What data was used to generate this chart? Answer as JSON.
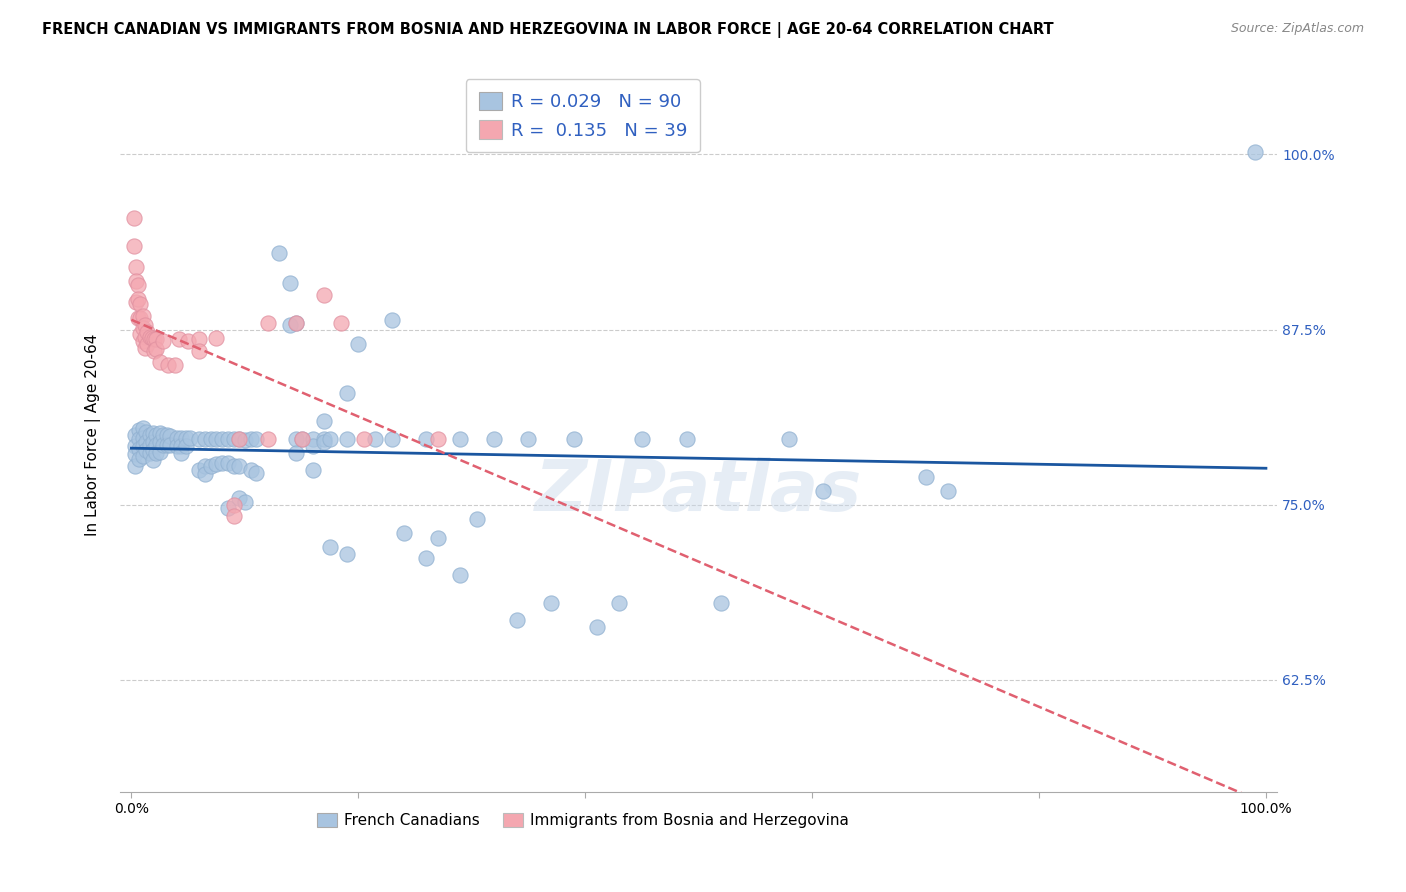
{
  "title": "FRENCH CANADIAN VS IMMIGRANTS FROM BOSNIA AND HERZEGOVINA IN LABOR FORCE | AGE 20-64 CORRELATION CHART",
  "source": "Source: ZipAtlas.com",
  "ylabel": "In Labor Force | Age 20-64",
  "y_ticks": [
    0.625,
    0.75,
    0.875,
    1.0
  ],
  "y_tick_labels": [
    "62.5%",
    "75.0%",
    "87.5%",
    "100.0%"
  ],
  "x_ticks": [
    0.0,
    0.2,
    0.4,
    0.6,
    0.8,
    1.0
  ],
  "x_tick_labels": [
    "0.0%",
    "",
    "",
    "",
    "",
    "100.0%"
  ],
  "r_blue": 0.029,
  "n_blue": 90,
  "r_pink": 0.135,
  "n_pink": 39,
  "legend_label_blue": "French Canadians",
  "legend_label_pink": "Immigrants from Bosnia and Herzegovina",
  "blue_color": "#a8c4e0",
  "pink_color": "#f4a7b0",
  "blue_line_color": "#1a56a0",
  "pink_line_color": "#e06070",
  "legend_text_color": "#3060c0",
  "watermark": "ZIPatlas",
  "ylim_low": 0.545,
  "ylim_high": 1.055,
  "xlim_low": -0.01,
  "xlim_high": 1.01,
  "blue_points": [
    [
      0.003,
      0.8
    ],
    [
      0.003,
      0.792
    ],
    [
      0.003,
      0.786
    ],
    [
      0.003,
      0.778
    ],
    [
      0.007,
      0.803
    ],
    [
      0.007,
      0.797
    ],
    [
      0.007,
      0.79
    ],
    [
      0.007,
      0.783
    ],
    [
      0.01,
      0.805
    ],
    [
      0.01,
      0.798
    ],
    [
      0.01,
      0.792
    ],
    [
      0.01,
      0.785
    ],
    [
      0.013,
      0.802
    ],
    [
      0.013,
      0.795
    ],
    [
      0.013,
      0.789
    ],
    [
      0.016,
      0.8
    ],
    [
      0.016,
      0.793
    ],
    [
      0.016,
      0.787
    ],
    [
      0.019,
      0.801
    ],
    [
      0.019,
      0.795
    ],
    [
      0.019,
      0.789
    ],
    [
      0.019,
      0.782
    ],
    [
      0.022,
      0.8
    ],
    [
      0.022,
      0.793
    ],
    [
      0.022,
      0.787
    ],
    [
      0.025,
      0.801
    ],
    [
      0.025,
      0.795
    ],
    [
      0.025,
      0.788
    ],
    [
      0.028,
      0.8
    ],
    [
      0.028,
      0.793
    ],
    [
      0.031,
      0.8
    ],
    [
      0.031,
      0.793
    ],
    [
      0.034,
      0.799
    ],
    [
      0.034,
      0.793
    ],
    [
      0.04,
      0.798
    ],
    [
      0.04,
      0.792
    ],
    [
      0.044,
      0.798
    ],
    [
      0.044,
      0.792
    ],
    [
      0.044,
      0.787
    ],
    [
      0.048,
      0.798
    ],
    [
      0.048,
      0.792
    ],
    [
      0.052,
      0.798
    ],
    [
      0.06,
      0.797
    ],
    [
      0.06,
      0.775
    ],
    [
      0.065,
      0.797
    ],
    [
      0.065,
      0.778
    ],
    [
      0.065,
      0.772
    ],
    [
      0.07,
      0.797
    ],
    [
      0.07,
      0.778
    ],
    [
      0.075,
      0.797
    ],
    [
      0.075,
      0.779
    ],
    [
      0.08,
      0.797
    ],
    [
      0.08,
      0.78
    ],
    [
      0.085,
      0.797
    ],
    [
      0.085,
      0.78
    ],
    [
      0.085,
      0.748
    ],
    [
      0.09,
      0.797
    ],
    [
      0.09,
      0.778
    ],
    [
      0.095,
      0.797
    ],
    [
      0.095,
      0.778
    ],
    [
      0.095,
      0.755
    ],
    [
      0.1,
      0.796
    ],
    [
      0.1,
      0.752
    ],
    [
      0.105,
      0.797
    ],
    [
      0.105,
      0.775
    ],
    [
      0.11,
      0.797
    ],
    [
      0.11,
      0.773
    ],
    [
      0.13,
      0.93
    ],
    [
      0.14,
      0.908
    ],
    [
      0.14,
      0.878
    ],
    [
      0.145,
      0.88
    ],
    [
      0.145,
      0.797
    ],
    [
      0.145,
      0.787
    ],
    [
      0.15,
      0.797
    ],
    [
      0.16,
      0.797
    ],
    [
      0.16,
      0.792
    ],
    [
      0.16,
      0.775
    ],
    [
      0.17,
      0.81
    ],
    [
      0.17,
      0.797
    ],
    [
      0.17,
      0.795
    ],
    [
      0.175,
      0.797
    ],
    [
      0.175,
      0.72
    ],
    [
      0.19,
      0.83
    ],
    [
      0.19,
      0.797
    ],
    [
      0.19,
      0.715
    ],
    [
      0.2,
      0.865
    ],
    [
      0.215,
      0.797
    ],
    [
      0.23,
      0.882
    ],
    [
      0.23,
      0.797
    ],
    [
      0.24,
      0.73
    ],
    [
      0.26,
      0.797
    ],
    [
      0.26,
      0.712
    ],
    [
      0.27,
      0.726
    ],
    [
      0.29,
      0.797
    ],
    [
      0.29,
      0.7
    ],
    [
      0.305,
      0.74
    ],
    [
      0.32,
      0.797
    ],
    [
      0.34,
      0.668
    ],
    [
      0.35,
      0.797
    ],
    [
      0.37,
      0.68
    ],
    [
      0.39,
      0.797
    ],
    [
      0.41,
      0.663
    ],
    [
      0.43,
      0.68
    ],
    [
      0.45,
      0.797
    ],
    [
      0.49,
      0.797
    ],
    [
      0.52,
      0.68
    ],
    [
      0.58,
      0.797
    ],
    [
      0.61,
      0.76
    ],
    [
      0.7,
      0.77
    ],
    [
      0.72,
      0.76
    ],
    [
      0.99,
      1.002
    ]
  ],
  "pink_points": [
    [
      0.002,
      0.955
    ],
    [
      0.002,
      0.935
    ],
    [
      0.004,
      0.92
    ],
    [
      0.004,
      0.91
    ],
    [
      0.004,
      0.895
    ],
    [
      0.006,
      0.907
    ],
    [
      0.006,
      0.897
    ],
    [
      0.006,
      0.883
    ],
    [
      0.008,
      0.893
    ],
    [
      0.008,
      0.883
    ],
    [
      0.008,
      0.872
    ],
    [
      0.01,
      0.885
    ],
    [
      0.01,
      0.876
    ],
    [
      0.01,
      0.867
    ],
    [
      0.012,
      0.878
    ],
    [
      0.012,
      0.87
    ],
    [
      0.012,
      0.862
    ],
    [
      0.014,
      0.873
    ],
    [
      0.014,
      0.865
    ],
    [
      0.016,
      0.87
    ],
    [
      0.018,
      0.869
    ],
    [
      0.02,
      0.868
    ],
    [
      0.02,
      0.86
    ],
    [
      0.022,
      0.868
    ],
    [
      0.022,
      0.861
    ],
    [
      0.025,
      0.852
    ],
    [
      0.028,
      0.867
    ],
    [
      0.032,
      0.85
    ],
    [
      0.038,
      0.85
    ],
    [
      0.042,
      0.868
    ],
    [
      0.05,
      0.867
    ],
    [
      0.06,
      0.868
    ],
    [
      0.06,
      0.86
    ],
    [
      0.075,
      0.869
    ],
    [
      0.09,
      0.75
    ],
    [
      0.09,
      0.742
    ],
    [
      0.095,
      0.797
    ],
    [
      0.12,
      0.88
    ],
    [
      0.12,
      0.797
    ],
    [
      0.145,
      0.88
    ],
    [
      0.15,
      0.797
    ],
    [
      0.17,
      0.9
    ],
    [
      0.185,
      0.88
    ],
    [
      0.205,
      0.797
    ],
    [
      0.27,
      0.797
    ]
  ]
}
